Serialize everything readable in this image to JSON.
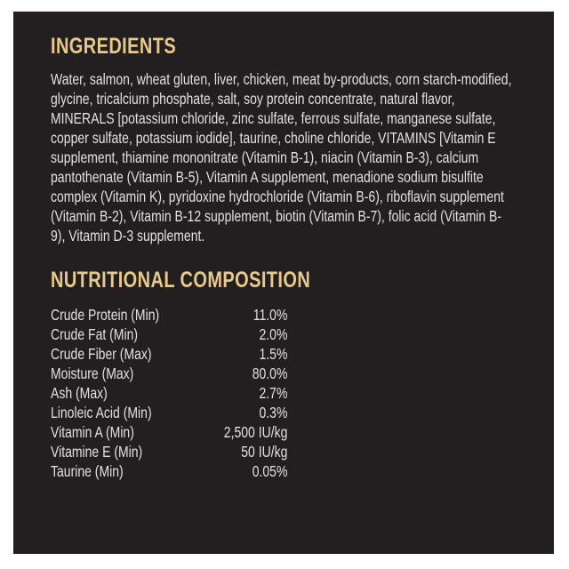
{
  "label": {
    "ingredients": {
      "heading": "INGREDIENTS",
      "text": "Water, salmon, wheat gluten, liver, chicken, meat by-products, corn starch-modified, glycine, tricalcium phosphate, salt, soy protein concentrate, natural flavor, MINERALS [potassium chloride, zinc sulfate, ferrous sulfate, manganese sulfate, copper sulfate, potassium iodide], taurine, choline chloride, VITAMINS [Vitamin E supplement, thiamine mononitrate (Vitamin B-1), niacin (Vitamin B-3), calcium pantothenate (Vitamin B-5), Vitamin A supplement, menadione sodium bisulfite complex (Vitamin K), pyridoxine hydrochloride (Vitamin B-6), riboflavin supplement (Vitamin B-2), Vitamin B-12 supplement, biotin (Vitamin B-7), folic acid (Vitamin B-9), Vitamin D-3 supplement."
    },
    "nutrition": {
      "heading": "NUTRITIONAL COMPOSITION",
      "rows": [
        {
          "name": "Crude Protein (Min)",
          "value": "11.0%"
        },
        {
          "name": "Crude Fat (Min)",
          "value": "2.0%"
        },
        {
          "name": "Crude Fiber (Max)",
          "value": "1.5%"
        },
        {
          "name": "Moisture (Max)",
          "value": "80.0%"
        },
        {
          "name": "Ash (Max)",
          "value": "2.7%"
        },
        {
          "name": "Linoleic Acid (Min)",
          "value": "0.3%"
        },
        {
          "name": "Vitamin A (Min)",
          "value": "2,500 IU/kg"
        },
        {
          "name": "Vitamine E (Min)",
          "value": "50 IU/kg"
        },
        {
          "name": "Taurine (Min)",
          "value": "0.05%"
        }
      ]
    },
    "colors": {
      "page_background": "#ffffff",
      "panel_background": "#231f20",
      "heading_gold": "#e6c98b",
      "body_text": "#e2e0e0"
    }
  }
}
